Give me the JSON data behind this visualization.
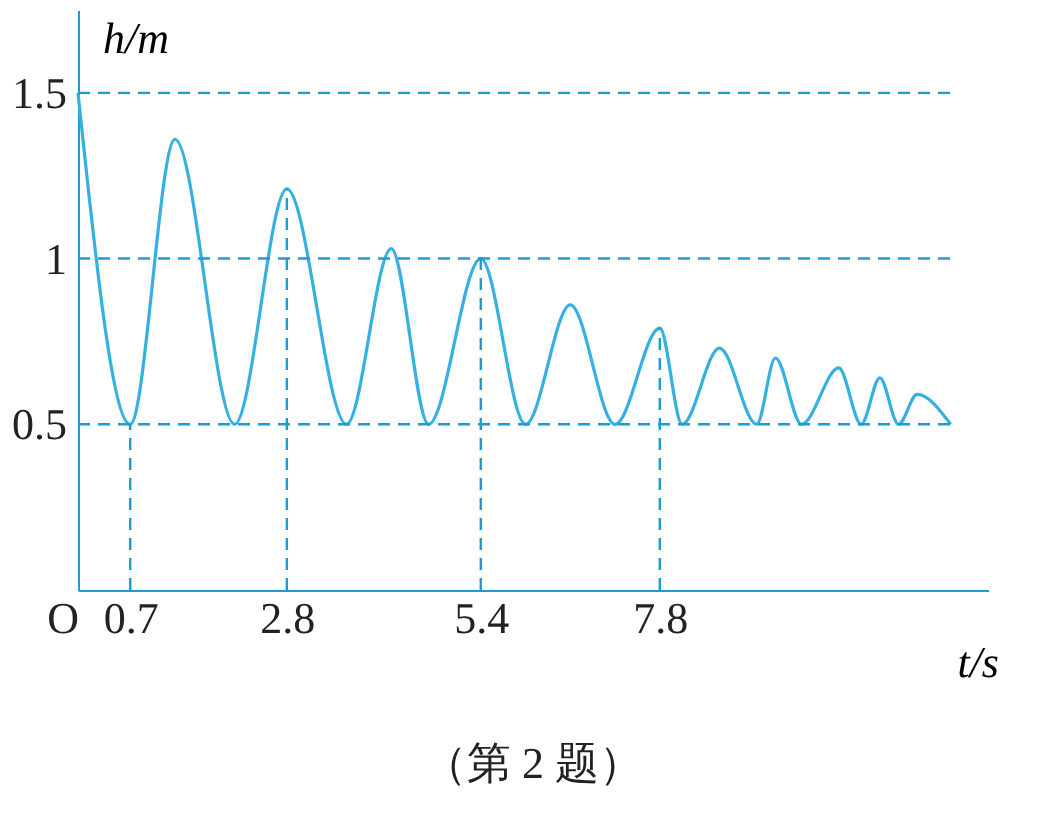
{
  "chart_data": {
    "type": "line",
    "x": [
      0,
      0.7,
      1.3,
      2.1,
      2.8,
      3.6,
      4.2,
      4.7,
      5.4,
      6.0,
      6.6,
      7.2,
      7.8,
      8.1,
      8.6,
      9.1,
      9.35,
      9.7,
      10.2,
      10.5,
      10.75,
      11.0,
      11.25,
      11.7
    ],
    "series": [
      {
        "color": "#35b0e0",
        "values": [
          1.5,
          0.5,
          1.36,
          0.5,
          1.21,
          0.5,
          1.03,
          0.5,
          1.0,
          0.5,
          0.86,
          0.5,
          0.79,
          0.5,
          0.73,
          0.5,
          0.7,
          0.5,
          0.67,
          0.5,
          0.64,
          0.5,
          0.59,
          0.5
        ]
      }
    ],
    "xlim": [
      0,
      12.2
    ],
    "ylim": [
      0,
      1.75
    ],
    "xticks": [
      {
        "value": 0,
        "label": "O"
      },
      0.7,
      2.8,
      5.4,
      7.8
    ],
    "yticks": [
      0.5,
      1,
      1.5
    ],
    "xlabel": "t/s",
    "ylabel": "h/m",
    "ref_lines": [
      {
        "axis": "y",
        "value": 0.5,
        "line_style": "dashed"
      },
      {
        "axis": "y",
        "value": 1,
        "line_style": "dashed"
      },
      {
        "axis": "y",
        "value": 1.5,
        "line_style": "dashed"
      },
      {
        "axis": "x",
        "value": 0.7,
        "line_style": "dashed"
      },
      {
        "axis": "x",
        "value": 2.8,
        "line_style": "dashed"
      },
      {
        "axis": "x",
        "value": 5.4,
        "line_style": "dashed"
      },
      {
        "axis": "x",
        "value": 7.8,
        "line_style": "dashed"
      }
    ],
    "annotations": [
      "（第 2 题）"
    ]
  }
}
